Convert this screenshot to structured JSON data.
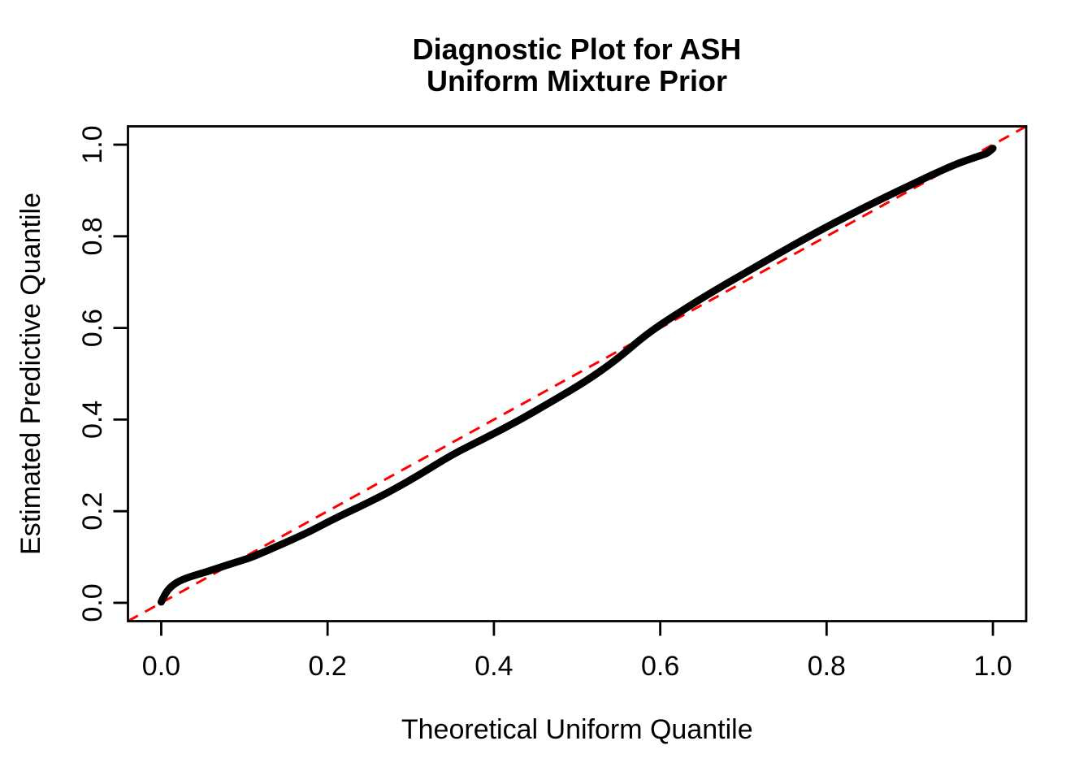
{
  "page": {
    "background": "#FFFFFF"
  },
  "chart_data": {
    "type": "line",
    "title_lines": [
      "Diagnostic Plot for ASH",
      "Uniform Mixture Prior"
    ],
    "xlabel": "Theoretical Uniform Quantile",
    "ylabel": "Estimated Predictive Quantile",
    "xlim": [
      0,
      1
    ],
    "ylim": [
      0,
      1
    ],
    "x_ticks": [
      0.0,
      0.2,
      0.4,
      0.6,
      0.8,
      1.0
    ],
    "y_ticks": [
      0.0,
      0.2,
      0.4,
      0.6,
      0.8,
      1.0
    ],
    "tick_decimals": 1,
    "grid": false,
    "legend": null,
    "colors": {
      "axis": "#000000",
      "curve": "#000000",
      "reference": "#FF0000"
    },
    "reference_line": {
      "name": "identity-line",
      "equation": "y = x",
      "style": "dashed",
      "color": "#FF0000",
      "from": [
        0,
        0
      ],
      "to": [
        1,
        1
      ]
    },
    "series": [
      {
        "name": "estimated-predictive-quantile-curve",
        "type": "thick-point-line",
        "color": "#000000",
        "points": [
          [
            0.0,
            0.002
          ],
          [
            0.003,
            0.013
          ],
          [
            0.006,
            0.023
          ],
          [
            0.01,
            0.032
          ],
          [
            0.015,
            0.04
          ],
          [
            0.021,
            0.047
          ],
          [
            0.03,
            0.054
          ],
          [
            0.042,
            0.061
          ],
          [
            0.055,
            0.068
          ],
          [
            0.07,
            0.077
          ],
          [
            0.087,
            0.087
          ],
          [
            0.105,
            0.097
          ],
          [
            0.12,
            0.108
          ],
          [
            0.14,
            0.124
          ],
          [
            0.16,
            0.14
          ],
          [
            0.18,
            0.157
          ],
          [
            0.2,
            0.176
          ],
          [
            0.22,
            0.194
          ],
          [
            0.24,
            0.211
          ],
          [
            0.26,
            0.229
          ],
          [
            0.28,
            0.248
          ],
          [
            0.31,
            0.279
          ],
          [
            0.35,
            0.324
          ],
          [
            0.39,
            0.36
          ],
          [
            0.43,
            0.398
          ],
          [
            0.47,
            0.44
          ],
          [
            0.51,
            0.483
          ],
          [
            0.54,
            0.521
          ],
          [
            0.56,
            0.55
          ],
          [
            0.578,
            0.578
          ],
          [
            0.6,
            0.607
          ],
          [
            0.63,
            0.642
          ],
          [
            0.66,
            0.676
          ],
          [
            0.7,
            0.718
          ],
          [
            0.74,
            0.76
          ],
          [
            0.78,
            0.801
          ],
          [
            0.81,
            0.83
          ],
          [
            0.84,
            0.858
          ],
          [
            0.87,
            0.885
          ],
          [
            0.9,
            0.911
          ],
          [
            0.93,
            0.937
          ],
          [
            0.955,
            0.957
          ],
          [
            0.97,
            0.967
          ],
          [
            0.985,
            0.976
          ],
          [
            0.993,
            0.981
          ],
          [
            1.0,
            0.992
          ]
        ]
      }
    ]
  }
}
